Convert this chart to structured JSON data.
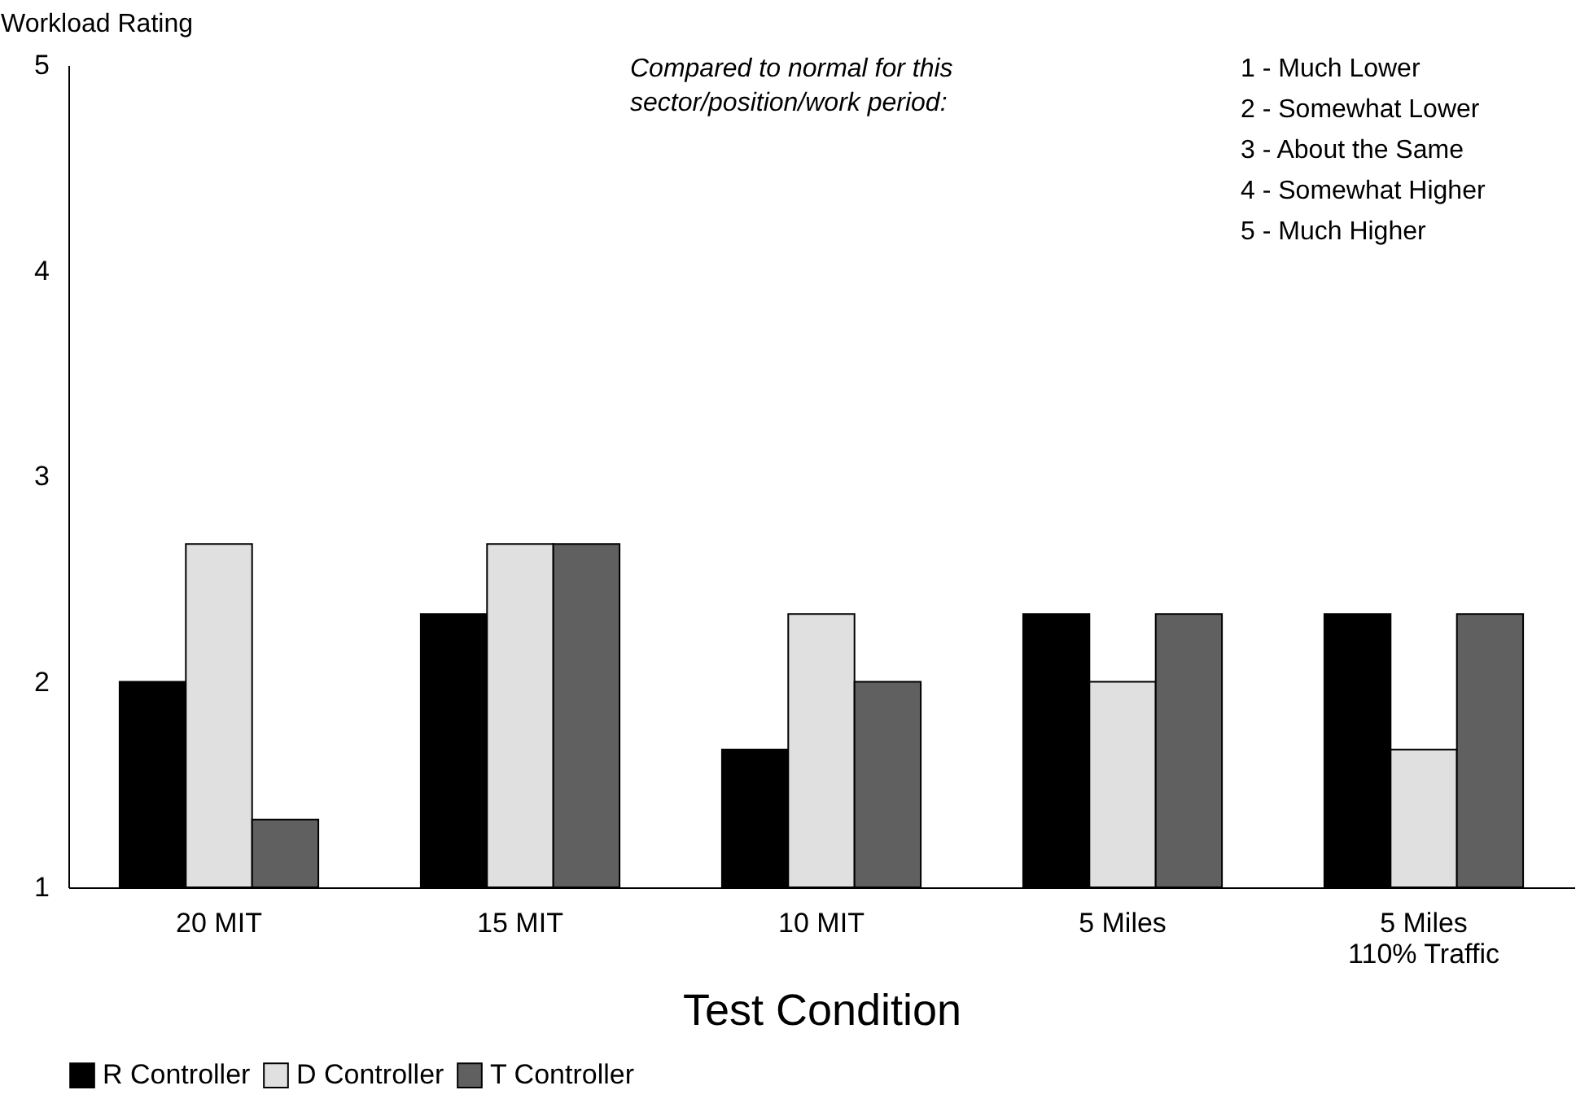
{
  "chart_data": {
    "type": "bar",
    "xlabel": "Test Condition",
    "ylabel": "Workload Rating",
    "categories": [
      "20 MIT",
      "15 MIT",
      "10 MIT",
      "5 Miles",
      "5 Miles\n110% Traffic"
    ],
    "series": [
      {
        "name": "R Controller",
        "color": "#000000",
        "values": [
          2.0,
          2.33,
          1.67,
          2.33,
          2.33
        ]
      },
      {
        "name": "D Controller",
        "color": "#e0e0e0",
        "values": [
          2.67,
          2.67,
          2.33,
          2.0,
          1.67
        ]
      },
      {
        "name": "T Controller",
        "color": "#606060",
        "values": [
          1.33,
          2.67,
          2.0,
          2.33,
          2.33
        ]
      }
    ],
    "ylim": [
      1,
      5
    ],
    "yticks": [
      1,
      2,
      3,
      4,
      5
    ],
    "grid": false,
    "legend": "bottom",
    "annotations": [
      "Compared to normal for this\nsector/position/work period:",
      "1 - Much Lower",
      "2 - Somewhat Lower",
      "3 - About the Same",
      "4 - Somewhat Higher",
      "5 - Much Higher"
    ]
  }
}
